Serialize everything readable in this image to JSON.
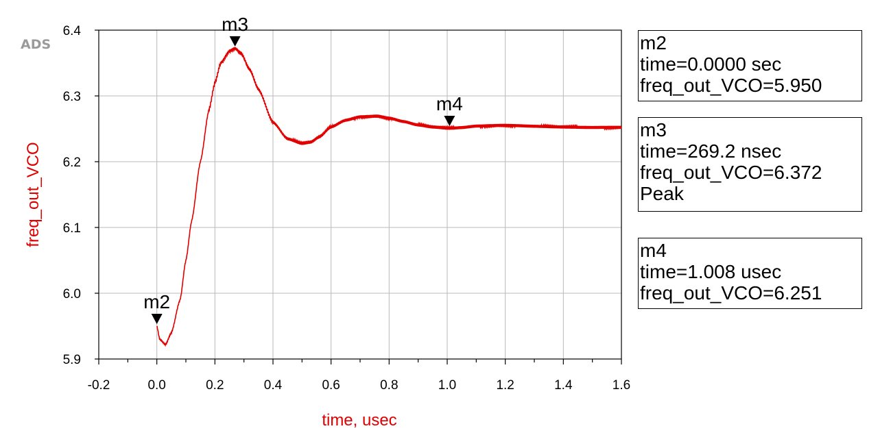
{
  "watermark": "ADS",
  "chart_data": {
    "type": "line",
    "xlabel": "time, usec",
    "ylabel": "freq_out_VCO",
    "xlim": [
      -0.2,
      1.6
    ],
    "ylim": [
      5.9,
      6.4
    ],
    "xticks": [
      "-0.2",
      "0.0",
      "0.2",
      "0.4",
      "0.6",
      "0.8",
      "1.0",
      "1.2",
      "1.4",
      "1.6"
    ],
    "yticks": [
      "5.9",
      "6.0",
      "6.1",
      "6.2",
      "6.3",
      "6.4"
    ],
    "series": [
      {
        "x": [
          0.0,
          0.01,
          0.03,
          0.05,
          0.08,
          0.1,
          0.12,
          0.15,
          0.18,
          0.2,
          0.22,
          0.25,
          0.269,
          0.29,
          0.32,
          0.35,
          0.4,
          0.45,
          0.5,
          0.53,
          0.56,
          0.6,
          0.65,
          0.7,
          0.76,
          0.8,
          0.85,
          0.9,
          0.95,
          1.008,
          1.05,
          1.1,
          1.2,
          1.3,
          1.4,
          1.5,
          1.6
        ],
        "y": [
          5.95,
          5.93,
          5.922,
          5.94,
          5.99,
          6.05,
          6.11,
          6.2,
          6.28,
          6.32,
          6.35,
          6.368,
          6.372,
          6.365,
          6.34,
          6.31,
          6.26,
          6.235,
          6.228,
          6.23,
          6.238,
          6.253,
          6.263,
          6.268,
          6.269,
          6.266,
          6.261,
          6.256,
          6.253,
          6.251,
          6.252,
          6.254,
          6.255,
          6.254,
          6.253,
          6.252,
          6.252
        ],
        "color": "#e00000"
      }
    ],
    "markers": [
      {
        "label": "m2",
        "x": 0.0,
        "y": 5.95
      },
      {
        "label": "m3",
        "x": 0.2692,
        "y": 6.372
      },
      {
        "label": "m4",
        "x": 1.008,
        "y": 6.251
      }
    ],
    "grid": true
  },
  "marker_readouts": [
    {
      "name": "m2",
      "lines": [
        "m2",
        "time=0.0000 sec",
        "freq_out_VCO=5.950"
      ]
    },
    {
      "name": "m3",
      "lines": [
        "m3",
        "time=269.2 nsec",
        "freq_out_VCO=6.372",
        "Peak"
      ]
    },
    {
      "name": "m4",
      "lines": [
        "m4",
        "time=1.008 usec",
        "freq_out_VCO=6.251"
      ]
    }
  ]
}
